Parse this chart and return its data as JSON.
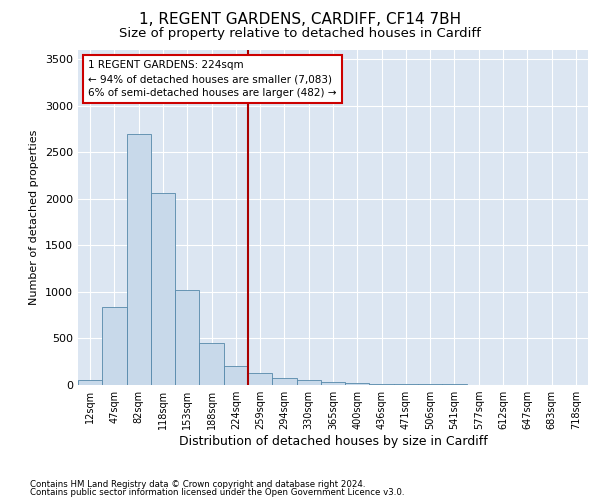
{
  "title": "1, REGENT GARDENS, CARDIFF, CF14 7BH",
  "subtitle": "Size of property relative to detached houses in Cardiff",
  "xlabel": "Distribution of detached houses by size in Cardiff",
  "ylabel": "Number of detached properties",
  "footnote1": "Contains HM Land Registry data © Crown copyright and database right 2024.",
  "footnote2": "Contains public sector information licensed under the Open Government Licence v3.0.",
  "categories": [
    "12sqm",
    "47sqm",
    "82sqm",
    "118sqm",
    "153sqm",
    "188sqm",
    "224sqm",
    "259sqm",
    "294sqm",
    "330sqm",
    "365sqm",
    "400sqm",
    "436sqm",
    "471sqm",
    "506sqm",
    "541sqm",
    "577sqm",
    "612sqm",
    "647sqm",
    "683sqm",
    "718sqm"
  ],
  "values": [
    55,
    840,
    2700,
    2060,
    1020,
    450,
    200,
    130,
    70,
    50,
    30,
    20,
    15,
    10,
    8,
    6,
    4,
    3,
    2,
    2,
    1
  ],
  "bar_color": "#c8d9ea",
  "bar_edge_color": "#5588aa",
  "vline_color": "#aa0000",
  "annotation_text": "1 REGENT GARDENS: 224sqm\n← 94% of detached houses are smaller (7,083)\n6% of semi-detached houses are larger (482) →",
  "annotation_box_color": "#ffffff",
  "annotation_box_edge": "#cc0000",
  "ylim": [
    0,
    3600
  ],
  "yticks": [
    0,
    500,
    1000,
    1500,
    2000,
    2500,
    3000,
    3500
  ],
  "grid_color": "#ffffff",
  "plot_background": "#dce6f2",
  "title_fontsize": 11,
  "subtitle_fontsize": 9.5,
  "vline_index": 6
}
